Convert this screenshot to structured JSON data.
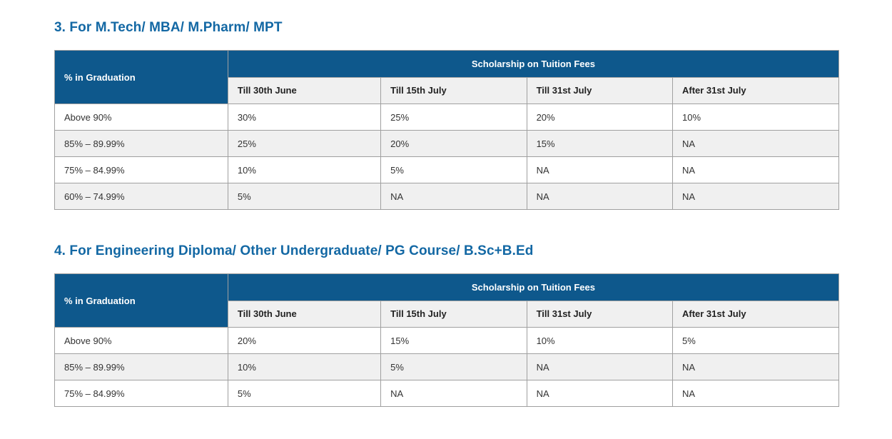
{
  "colors": {
    "header_blue": "#0e588c",
    "heading_text": "#1368a4",
    "subheader_bg": "#f0f0f0",
    "row_alt_bg": "#f0f0f0",
    "border": "#a0a0a0"
  },
  "sections": [
    {
      "heading": "3. For M.Tech/ MBA/ M.Pharm/ MPT",
      "table": {
        "corner_header": "% in Graduation",
        "group_header": "Scholarship on Tuition Fees",
        "columns": [
          "Till 30th June",
          "Till 15th July",
          "Till 31st July",
          "After 31st July"
        ],
        "rows": [
          {
            "label": "Above 90%",
            "values": [
              "30%",
              "25%",
              "20%",
              "10%"
            ]
          },
          {
            "label": "85% – 89.99%",
            "values": [
              "25%",
              "20%",
              "15%",
              "NA"
            ]
          },
          {
            "label": "75% – 84.99%",
            "values": [
              "10%",
              "5%",
              "NA",
              "NA"
            ]
          },
          {
            "label": "60% – 74.99%",
            "values": [
              "5%",
              "NA",
              "NA",
              "NA"
            ]
          }
        ]
      }
    },
    {
      "heading": "4. For Engineering Diploma/ Other Undergraduate/ PG Course/ B.Sc+B.Ed",
      "table": {
        "corner_header": "% in Graduation",
        "group_header": "Scholarship on Tuition Fees",
        "columns": [
          "Till 30th June",
          "Till 15th July",
          "Till 31st July",
          "After 31st July"
        ],
        "rows": [
          {
            "label": "Above 90%",
            "values": [
              "20%",
              "15%",
              "10%",
              "5%"
            ]
          },
          {
            "label": "85% – 89.99%",
            "values": [
              "10%",
              "5%",
              "NA",
              "NA"
            ]
          },
          {
            "label": "75% – 84.99%",
            "values": [
              "5%",
              "NA",
              "NA",
              "NA"
            ]
          }
        ]
      }
    }
  ]
}
